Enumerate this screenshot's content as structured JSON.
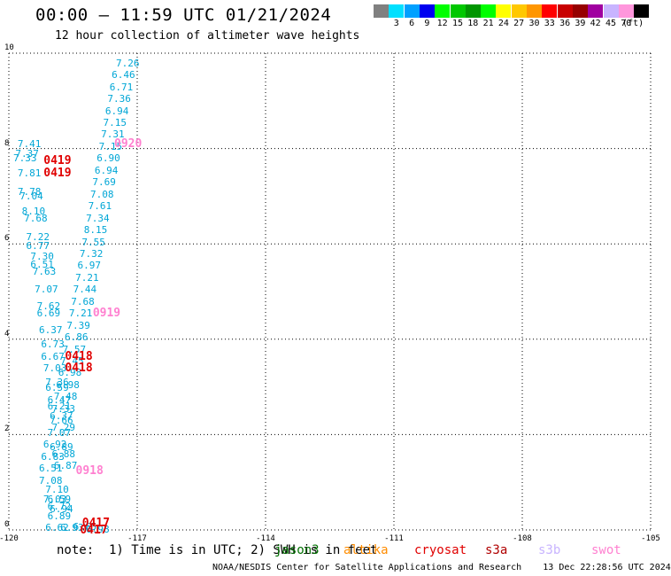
{
  "header": {
    "title": "00:00 — 11:59 UTC 01/21/2024",
    "subtitle": "12 hour collection of altimeter wave heights"
  },
  "colorbar": {
    "unit": "(ft)",
    "swatches": [
      {
        "color": "#808080",
        "label": ""
      },
      {
        "color": "#00e0ff",
        "label": "3"
      },
      {
        "color": "#00a0ff",
        "label": "6"
      },
      {
        "color": "#0000f0",
        "label": "9"
      },
      {
        "color": "#00ff00",
        "label": "12"
      },
      {
        "color": "#00c800",
        "label": "15"
      },
      {
        "color": "#009600",
        "label": "18"
      },
      {
        "color": "#00ff00",
        "label": "21"
      },
      {
        "color": "#ffff00",
        "label": "24"
      },
      {
        "color": "#ffc800",
        "label": "27"
      },
      {
        "color": "#ff9600",
        "label": "30"
      },
      {
        "color": "#ff0000",
        "label": "33"
      },
      {
        "color": "#c80000",
        "label": "36"
      },
      {
        "color": "#960000",
        "label": "39"
      },
      {
        "color": "#a000a0",
        "label": "42"
      },
      {
        "color": "#c8b4ff",
        "label": "45"
      },
      {
        "color": "#ff96dc",
        "label": "70"
      },
      {
        "color": "#000000",
        "label": ""
      }
    ]
  },
  "map": {
    "lon_ticks": [
      "-120",
      "-117",
      "-114",
      "-111",
      "-108",
      "-105"
    ],
    "lat_ticks": [
      "0",
      "2",
      "4",
      "6",
      "8",
      "10"
    ],
    "lon_range": [
      -120,
      -105
    ],
    "lat_range": [
      0,
      10
    ],
    "measurements": [
      {
        "lon": -117.6,
        "lat": 9.8,
        "v": "7.26"
      },
      {
        "lon": -117.7,
        "lat": 9.55,
        "v": "6.46"
      },
      {
        "lon": -117.75,
        "lat": 9.3,
        "v": "6.71"
      },
      {
        "lon": -117.8,
        "lat": 9.05,
        "v": "7.36"
      },
      {
        "lon": -117.85,
        "lat": 8.8,
        "v": "6.94"
      },
      {
        "lon": -117.9,
        "lat": 8.55,
        "v": "7.15"
      },
      {
        "lon": -117.95,
        "lat": 8.3,
        "v": "7.31"
      },
      {
        "lon": -118.0,
        "lat": 8.05,
        "v": "7.15"
      },
      {
        "lon": -118.05,
        "lat": 7.8,
        "v": "6.90"
      },
      {
        "lon": -118.1,
        "lat": 7.55,
        "v": "6.94"
      },
      {
        "lon": -118.15,
        "lat": 7.3,
        "v": "7.69"
      },
      {
        "lon": -118.2,
        "lat": 7.05,
        "v": "7.08"
      },
      {
        "lon": -118.25,
        "lat": 6.8,
        "v": "7.61"
      },
      {
        "lon": -118.3,
        "lat": 6.55,
        "v": "7.34"
      },
      {
        "lon": -118.35,
        "lat": 6.3,
        "v": "8.15"
      },
      {
        "lon": -118.4,
        "lat": 6.05,
        "v": "7.55"
      },
      {
        "lon": -118.45,
        "lat": 5.8,
        "v": "7.32"
      },
      {
        "lon": -118.5,
        "lat": 5.55,
        "v": "6.97"
      },
      {
        "lon": -118.55,
        "lat": 5.3,
        "v": "7.21"
      },
      {
        "lon": -118.6,
        "lat": 5.05,
        "v": "7.44"
      },
      {
        "lon": -118.65,
        "lat": 4.8,
        "v": "7.68"
      },
      {
        "lon": -118.7,
        "lat": 4.55,
        "v": "7.21"
      },
      {
        "lon": -118.75,
        "lat": 4.3,
        "v": "7.39"
      },
      {
        "lon": -118.8,
        "lat": 4.05,
        "v": "6.86"
      },
      {
        "lon": -118.85,
        "lat": 3.8,
        "v": "7.57"
      },
      {
        "lon": -118.9,
        "lat": 3.55,
        "v": "7.45"
      },
      {
        "lon": -118.95,
        "lat": 3.3,
        "v": "6.98"
      },
      {
        "lon": -119.0,
        "lat": 3.05,
        "v": "6.98"
      },
      {
        "lon": -119.05,
        "lat": 2.8,
        "v": "7.48"
      },
      {
        "lon": -119.1,
        "lat": 2.55,
        "v": "7.33"
      },
      {
        "lon": -119.15,
        "lat": 2.3,
        "v": "7.66"
      },
      {
        "lon": -119.2,
        "lat": 2.05,
        "v": "7.07"
      },
      {
        "lon": -119.3,
        "lat": 1.8,
        "v": "6.92"
      },
      {
        "lon": -119.35,
        "lat": 1.55,
        "v": "6.83"
      },
      {
        "lon": -119.4,
        "lat": 1.3,
        "v": "6.51"
      },
      {
        "lon": -119.4,
        "lat": 1.05,
        "v": "7.08"
      },
      {
        "lon": -119.25,
        "lat": 0.85,
        "v": "7.10"
      },
      {
        "lon": -119.2,
        "lat": 0.65,
        "v": "6.59"
      },
      {
        "lon": -119.15,
        "lat": 0.45,
        "v": "6.94"
      },
      {
        "lon": -119.9,
        "lat": 8.1,
        "v": "7.41"
      },
      {
        "lon": -119.95,
        "lat": 7.9,
        "v": "7.37"
      },
      {
        "lon": -120.0,
        "lat": 7.8,
        "v": "7.33"
      },
      {
        "lon": -119.9,
        "lat": 7.5,
        "v": "7.81"
      },
      {
        "lon": -119.9,
        "lat": 7.1,
        "v": "7.78"
      },
      {
        "lon": -119.85,
        "lat": 7.0,
        "v": "7.04"
      },
      {
        "lon": -119.8,
        "lat": 6.7,
        "v": "8.10"
      },
      {
        "lon": -119.75,
        "lat": 6.55,
        "v": "7.68"
      },
      {
        "lon": -119.7,
        "lat": 6.15,
        "v": "7.22"
      },
      {
        "lon": -119.7,
        "lat": 5.97,
        "v": "6.77"
      },
      {
        "lon": -119.6,
        "lat": 5.75,
        "v": "7.30"
      },
      {
        "lon": -119.6,
        "lat": 5.57,
        "v": "6.51"
      },
      {
        "lon": -119.55,
        "lat": 5.43,
        "v": "7.63"
      },
      {
        "lon": -119.5,
        "lat": 5.05,
        "v": "7.07"
      },
      {
        "lon": -119.45,
        "lat": 4.7,
        "v": "7.62"
      },
      {
        "lon": -119.45,
        "lat": 4.55,
        "v": "6.69"
      },
      {
        "lon": -119.4,
        "lat": 4.2,
        "v": "6.37"
      },
      {
        "lon": -119.35,
        "lat": 3.9,
        "v": "6.73"
      },
      {
        "lon": -119.35,
        "lat": 3.65,
        "v": "6.67"
      },
      {
        "lon": -119.3,
        "lat": 3.4,
        "v": "7.03"
      },
      {
        "lon": -119.25,
        "lat": 3.1,
        "v": "7.36"
      },
      {
        "lon": -119.25,
        "lat": 3.0,
        "v": "6.59"
      },
      {
        "lon": -119.2,
        "lat": 2.73,
        "v": "6.47"
      },
      {
        "lon": -119.2,
        "lat": 2.6,
        "v": "6.21"
      },
      {
        "lon": -119.15,
        "lat": 2.4,
        "v": "6.37"
      },
      {
        "lon": -119.1,
        "lat": 2.15,
        "v": "7.29"
      },
      {
        "lon": -119.05,
        "lat": 1.35,
        "v": "6.87"
      },
      {
        "lon": -119.1,
        "lat": 1.6,
        "v": "6.88"
      },
      {
        "lon": -119.15,
        "lat": 1.75,
        "v": "6.89"
      },
      {
        "lon": -119.2,
        "lat": 0.3,
        "v": "6.89"
      },
      {
        "lon": -119.25,
        "lat": 0.05,
        "v": "6.62"
      },
      {
        "lon": -119.3,
        "lat": 0.65,
        "v": "7.03"
      },
      {
        "lon": -119.2,
        "lat": 0.5,
        "v": "6.72"
      },
      {
        "lon": -118.9,
        "lat": 0.05,
        "v": "6.93"
      },
      {
        "lon": -118.6,
        "lat": 0.08,
        "v": "6.65"
      },
      {
        "lon": -118.3,
        "lat": 0.02,
        "v": "6.98"
      }
    ],
    "passes": [
      {
        "lon": -117.6,
        "lat": 8.1,
        "label": "0920",
        "color": "#ff80d0"
      },
      {
        "lon": -119.25,
        "lat": 7.75,
        "label": "0419",
        "color": "#e00000"
      },
      {
        "lon": -119.25,
        "lat": 7.5,
        "label": "0419",
        "color": "#e00000"
      },
      {
        "lon": -118.1,
        "lat": 4.55,
        "label": "0919",
        "color": "#ff80d0"
      },
      {
        "lon": -118.75,
        "lat": 3.65,
        "label": "0418",
        "color": "#e00000"
      },
      {
        "lon": -118.75,
        "lat": 3.4,
        "label": "0418",
        "color": "#e00000"
      },
      {
        "lon": -118.5,
        "lat": 1.25,
        "label": "0918",
        "color": "#ff80d0"
      },
      {
        "lon": -118.35,
        "lat": 0.15,
        "label": "0417",
        "color": "#e00000"
      },
      {
        "lon": -118.4,
        "lat": 0.0,
        "label": "0417",
        "color": "#e00000"
      }
    ]
  },
  "legend": {
    "note": "note:  1) Time is in UTC; 2) SWH is in feet",
    "satellites": [
      {
        "name": "jason3",
        "color": "#007000"
      },
      {
        "name": "altika",
        "color": "#ff8c00"
      },
      {
        "name": "cryosat",
        "color": "#e00000"
      },
      {
        "name": "s3a",
        "color": "#b00000"
      },
      {
        "name": "s3b",
        "color": "#c8b4ff"
      },
      {
        "name": "swot",
        "color": "#ff80d0"
      }
    ]
  },
  "footer": "NOAA/NESDIS Center for Satellite Applications and Research    13 Dec 22:28:56 UTC 2024"
}
